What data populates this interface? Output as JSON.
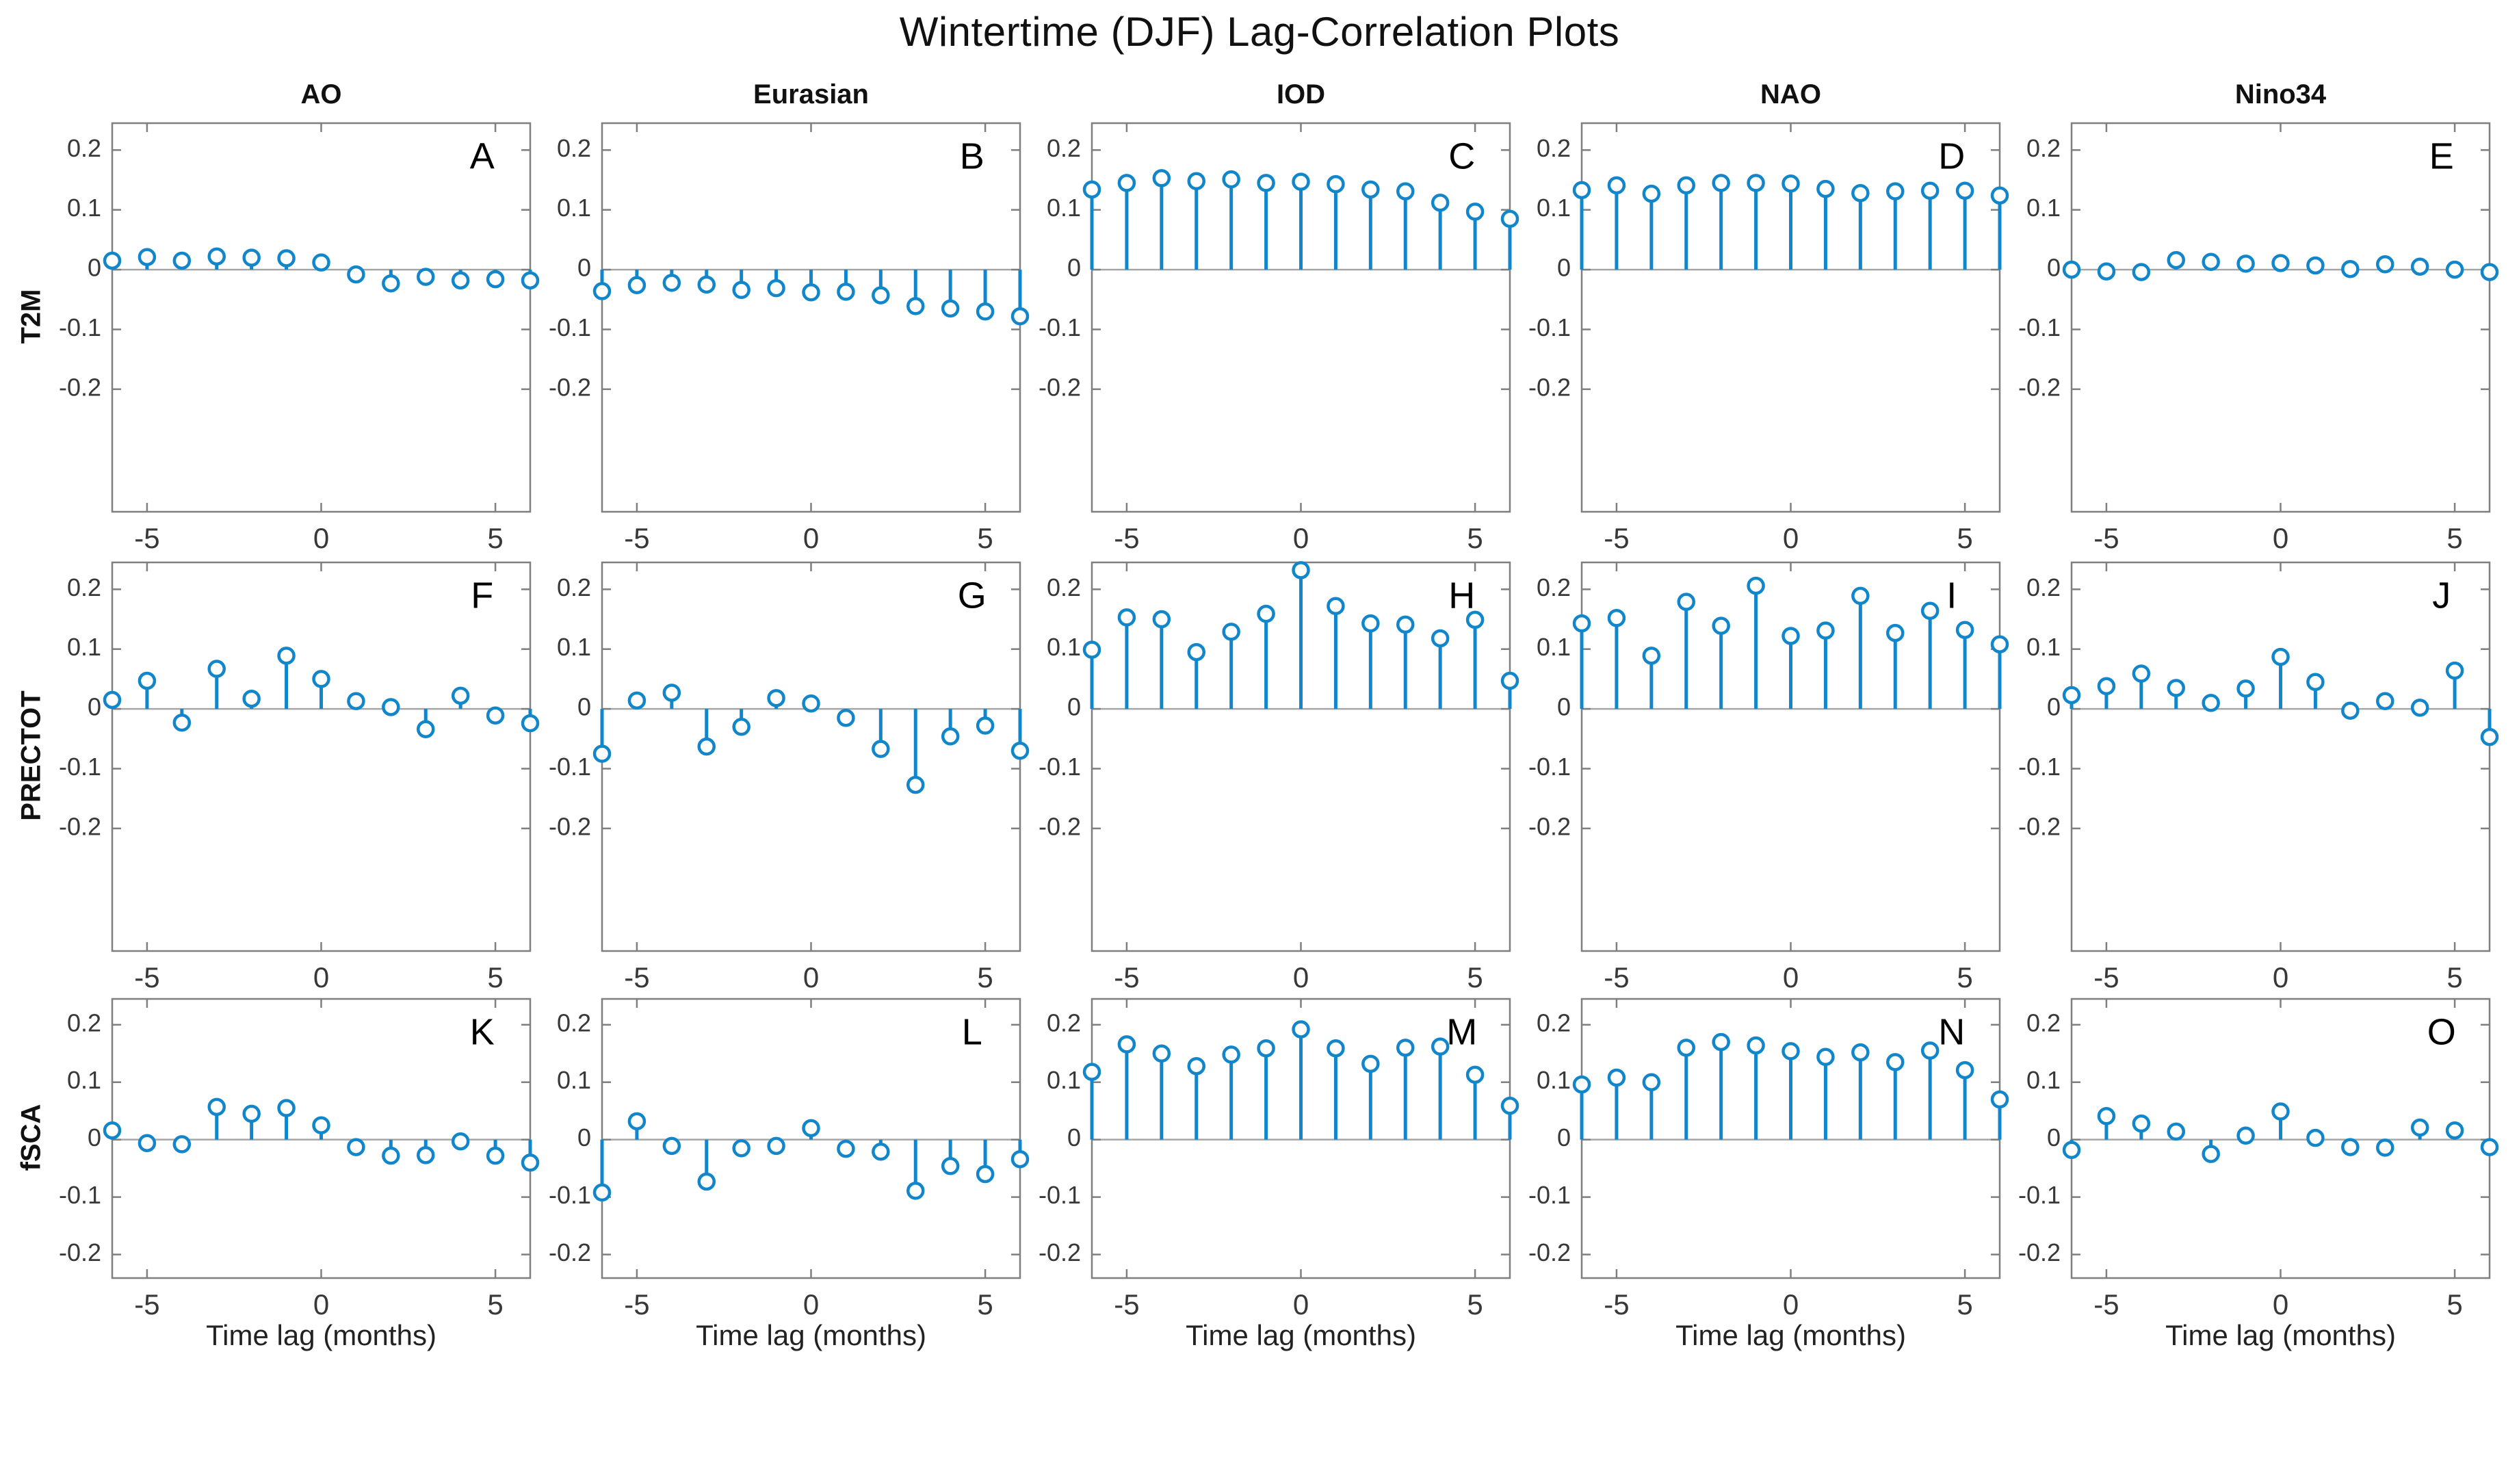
{
  "title": "Wintertime (DJF) Lag-Correlation Plots",
  "xlabel": "Time lag (months)",
  "columns": [
    "AO",
    "Eurasian",
    "IOD",
    "NAO",
    "Nino34"
  ],
  "rows": [
    "T2M",
    "PRECTOT",
    "fSCA"
  ],
  "colors": {
    "stem": "#1186cb",
    "marker_fill": "#ffffff",
    "zero_line": "#a6a6a6",
    "axis_box": "#7f7f7f",
    "tick_text": "#383838",
    "label_text": "#111111"
  },
  "chart_data": {
    "type": "stem",
    "title": "Wintertime (DJF) Lag-Correlation Plots",
    "xlabel": "Time lag (months)",
    "x": [
      -6,
      -5,
      -4,
      -3,
      -2,
      -1,
      0,
      1,
      2,
      3,
      4,
      5,
      6
    ],
    "x_tick_values": [
      -5,
      0,
      5
    ],
    "x_tick_labels": [
      "-5",
      "0",
      "5"
    ],
    "y_tick_values": [
      0.2,
      0.1,
      0,
      -0.1,
      -0.2
    ],
    "y_tick_labels": [
      "0.2",
      "0.1",
      "0",
      "-0.1",
      "-0.2"
    ],
    "xlim": [
      -6,
      6
    ],
    "grid": false,
    "legend": "none",
    "marker": "open-circle",
    "panel_grid": {
      "n_rows": 3,
      "n_cols": 5,
      "row_names": [
        "T2M",
        "PRECTOT",
        "fSCA"
      ],
      "col_names": [
        "AO",
        "Eurasian",
        "IOD",
        "NAO",
        "Nino34"
      ]
    },
    "ylim_by_row": [
      [
        -0.405,
        0.245
      ],
      [
        -0.405,
        0.245
      ],
      [
        -0.241,
        0.245
      ]
    ],
    "panels": [
      {
        "label": "A",
        "row": "T2M",
        "column": "AO",
        "values": [
          0.015,
          0.021,
          0.015,
          0.022,
          0.02,
          0.019,
          0.012,
          -0.008,
          -0.023,
          -0.012,
          -0.018,
          -0.016,
          -0.018
        ]
      },
      {
        "label": "B",
        "row": "T2M",
        "column": "Eurasian",
        "values": [
          -0.036,
          -0.026,
          -0.022,
          -0.025,
          -0.034,
          -0.031,
          -0.038,
          -0.037,
          -0.043,
          -0.061,
          -0.065,
          -0.07,
          -0.078
        ]
      },
      {
        "label": "C",
        "row": "T2M",
        "column": "IOD",
        "values": [
          0.134,
          0.145,
          0.153,
          0.148,
          0.151,
          0.145,
          0.147,
          0.143,
          0.134,
          0.131,
          0.112,
          0.097,
          0.085
        ]
      },
      {
        "label": "D",
        "row": "T2M",
        "column": "NAO",
        "values": [
          0.133,
          0.141,
          0.127,
          0.141,
          0.145,
          0.145,
          0.144,
          0.135,
          0.128,
          0.131,
          0.132,
          0.132,
          0.124
        ]
      },
      {
        "label": "E",
        "row": "T2M",
        "column": "Nino34",
        "values": [
          0.0,
          -0.003,
          -0.004,
          0.016,
          0.013,
          0.01,
          0.011,
          0.007,
          0.001,
          0.009,
          0.005,
          0.0,
          -0.004
        ]
      },
      {
        "label": "F",
        "row": "PRECTOT",
        "column": "AO",
        "values": [
          0.015,
          0.047,
          -0.023,
          0.067,
          0.017,
          0.089,
          0.05,
          0.013,
          0.003,
          -0.034,
          0.022,
          -0.011,
          -0.024
        ]
      },
      {
        "label": "G",
        "row": "PRECTOT",
        "column": "Eurasian",
        "values": [
          -0.075,
          0.014,
          0.027,
          -0.063,
          -0.03,
          0.018,
          0.009,
          -0.015,
          -0.067,
          -0.127,
          -0.046,
          -0.028,
          -0.07
        ]
      },
      {
        "label": "H",
        "row": "PRECTOT",
        "column": "IOD",
        "values": [
          0.099,
          0.153,
          0.15,
          0.095,
          0.129,
          0.159,
          0.232,
          0.172,
          0.143,
          0.141,
          0.118,
          0.149,
          0.047
        ]
      },
      {
        "label": "I",
        "row": "PRECTOT",
        "column": "NAO",
        "values": [
          0.143,
          0.152,
          0.089,
          0.179,
          0.139,
          0.206,
          0.122,
          0.131,
          0.189,
          0.127,
          0.164,
          0.132,
          0.108
        ]
      },
      {
        "label": "J",
        "row": "PRECTOT",
        "column": "Nino34",
        "values": [
          0.023,
          0.038,
          0.059,
          0.035,
          0.01,
          0.034,
          0.087,
          0.045,
          -0.003,
          0.013,
          0.002,
          0.064,
          -0.047
        ]
      },
      {
        "label": "K",
        "row": "fSCA",
        "column": "AO",
        "values": [
          0.016,
          -0.006,
          -0.008,
          0.057,
          0.045,
          0.055,
          0.025,
          -0.013,
          -0.028,
          -0.027,
          -0.003,
          -0.028,
          -0.04
        ]
      },
      {
        "label": "L",
        "row": "fSCA",
        "column": "Eurasian",
        "values": [
          -0.092,
          0.032,
          -0.011,
          -0.073,
          -0.015,
          -0.011,
          0.02,
          -0.016,
          -0.021,
          -0.089,
          -0.046,
          -0.06,
          -0.034
        ]
      },
      {
        "label": "M",
        "row": "fSCA",
        "column": "IOD",
        "values": [
          0.118,
          0.166,
          0.15,
          0.128,
          0.148,
          0.159,
          0.192,
          0.159,
          0.132,
          0.16,
          0.162,
          0.113,
          0.059
        ]
      },
      {
        "label": "N",
        "row": "fSCA",
        "column": "NAO",
        "values": [
          0.096,
          0.108,
          0.1,
          0.16,
          0.17,
          0.164,
          0.154,
          0.144,
          0.152,
          0.135,
          0.155,
          0.121,
          0.07
        ]
      },
      {
        "label": "O",
        "row": "fSCA",
        "column": "Nino34",
        "values": [
          -0.018,
          0.041,
          0.028,
          0.014,
          -0.025,
          0.007,
          0.049,
          0.003,
          -0.013,
          -0.014,
          0.021,
          0.016,
          -0.013
        ]
      }
    ]
  }
}
